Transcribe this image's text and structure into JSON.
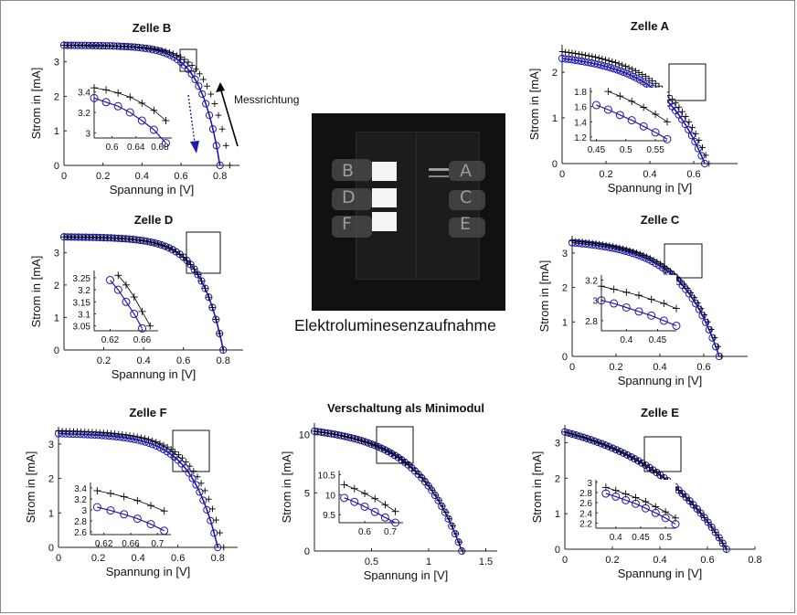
{
  "caption": "Elektroluminesenzaufnahme",
  "photo": {
    "cells_left": [
      "B",
      "D",
      "F"
    ],
    "cells_right": [
      "A",
      "C",
      "E"
    ]
  },
  "colors": {
    "measured": "#000000",
    "simulated": "#1f1aa8",
    "arrow_measure": "#000000",
    "arrow_sim": "#1f1aa8"
  },
  "chart_data": [
    {
      "id": "B",
      "type": "line",
      "title": "Zelle B",
      "xlabel": "Spannung in [V]",
      "ylabel": "Strom in [mA]",
      "xlim": [
        0,
        0.9
      ],
      "ylim": [
        0,
        3.6
      ],
      "xticks": [
        "0",
        "0.2",
        "0.4",
        "0.6",
        "0.8"
      ],
      "xtickvals": [
        0,
        0.2,
        0.4,
        0.6,
        0.8
      ],
      "yticks": [
        "0",
        "1",
        "2",
        "3"
      ],
      "ytickvals": [
        0,
        1,
        2,
        3
      ],
      "isc": 3.48,
      "voc_meas": 0.85,
      "voc_sim": 0.8,
      "shape": 8,
      "slope": 0.08,
      "annotation": "Messrichtung",
      "inset": {
        "xlim": [
          0.57,
          0.7
        ],
        "ylim": [
          2.95,
          3.45
        ],
        "xticks": [
          "0.6",
          "0.64",
          "0.68"
        ],
        "xtickvals": [
          0.6,
          0.64,
          0.68
        ],
        "yticks": [
          "3",
          "3.2",
          "3.4"
        ],
        "ytickvals": [
          3.0,
          3.2,
          3.4
        ],
        "series": [
          {
            "name": "measured",
            "x": [
              0.57,
              0.59,
              0.61,
              0.63,
              0.65,
              0.67,
              0.69
            ],
            "y": [
              3.44,
              3.42,
              3.39,
              3.35,
              3.29,
              3.22,
              3.12
            ]
          },
          {
            "name": "simulated",
            "x": [
              0.57,
              0.59,
              0.61,
              0.63,
              0.65,
              0.67,
              0.69
            ],
            "y": [
              3.34,
              3.3,
              3.26,
              3.2,
              3.12,
              3.03,
              2.9
            ]
          }
        ]
      }
    },
    {
      "id": "A",
      "type": "line",
      "title": "Zelle A",
      "xlabel": "Spannung in [V]",
      "ylabel": "Strom in [mA]",
      "xlim": [
        0,
        0.8
      ],
      "ylim": [
        0,
        2.6
      ],
      "xticks": [
        "0",
        "0.2",
        "0.4",
        "0.6"
      ],
      "xtickvals": [
        0,
        0.2,
        0.4,
        0.6
      ],
      "yticks": [
        "0",
        "1",
        "2"
      ],
      "ytickvals": [
        0,
        1,
        2
      ],
      "isc": 2.45,
      "isc_sim": 2.3,
      "voc_meas": 0.67,
      "voc_sim": 0.65,
      "shape": 3.5,
      "slope": 0.55,
      "inset": {
        "xlim": [
          0.44,
          0.57
        ],
        "ylim": [
          1.15,
          1.85
        ],
        "xticks": [
          "0.45",
          "0.5",
          "0.55"
        ],
        "xtickvals": [
          0.45,
          0.5,
          0.55
        ],
        "yticks": [
          "1.2",
          "1.4",
          "1.6",
          "1.8"
        ],
        "ytickvals": [
          1.2,
          1.4,
          1.6,
          1.8
        ],
        "series": [
          {
            "name": "measured",
            "x": [
              0.47,
              0.49,
              0.51,
              0.53,
              0.55,
              0.57
            ],
            "y": [
              1.8,
              1.74,
              1.67,
              1.59,
              1.5,
              1.4
            ]
          },
          {
            "name": "simulated",
            "x": [
              0.45,
              0.47,
              0.49,
              0.51,
              0.53,
              0.55,
              0.57
            ],
            "y": [
              1.62,
              1.56,
              1.49,
              1.42,
              1.34,
              1.26,
              1.17
            ]
          }
        ]
      }
    },
    {
      "id": "D",
      "type": "line",
      "title": "Zelle D",
      "xlabel": "Spannung in [V]",
      "ylabel": "Strom in [mA]",
      "xlim": [
        0,
        0.9
      ],
      "ylim": [
        0,
        3.6
      ],
      "xticks": [
        "0.2",
        "0.4",
        "0.6",
        "0.8"
      ],
      "xtickvals": [
        0.2,
        0.4,
        0.6,
        0.8
      ],
      "yticks": [
        "0",
        "1",
        "2",
        "3"
      ],
      "ytickvals": [
        0,
        1,
        2,
        3
      ],
      "isc": 3.48,
      "voc_meas": 0.8,
      "voc_sim": 0.8,
      "shape": 7,
      "slope": 0.1,
      "inset": {
        "xlim": [
          0.6,
          0.68
        ],
        "ylim": [
          3.03,
          3.28
        ],
        "xticks": [
          "0.62",
          "0.66"
        ],
        "xtickvals": [
          0.62,
          0.66
        ],
        "yticks": [
          "3.05",
          "3.1",
          "3.15",
          "3.2",
          "3.25"
        ],
        "ytickvals": [
          3.05,
          3.1,
          3.15,
          3.2,
          3.25
        ],
        "series": [
          {
            "name": "measured",
            "x": [
              0.63,
              0.64,
              0.65,
              0.66,
              0.67
            ],
            "y": [
              3.26,
              3.22,
              3.17,
              3.11,
              3.05
            ]
          },
          {
            "name": "simulated",
            "x": [
              0.62,
              0.63,
              0.64,
              0.65,
              0.66
            ],
            "y": [
              3.24,
              3.2,
              3.15,
              3.1,
              3.04
            ]
          }
        ]
      }
    },
    {
      "id": "C",
      "type": "line",
      "title": "Zelle C",
      "xlabel": "Spannung in [V]",
      "ylabel": "Strom in [mA]",
      "xlim": [
        0,
        0.8
      ],
      "ylim": [
        0,
        3.5
      ],
      "xticks": [
        "0",
        "0.2",
        "0.4",
        "0.6"
      ],
      "xtickvals": [
        0,
        0.2,
        0.4,
        0.6
      ],
      "yticks": [
        "0",
        "1",
        "2",
        "3"
      ],
      "ytickvals": [
        0,
        1,
        2,
        3
      ],
      "isc": 3.35,
      "isc_sim": 3.3,
      "voc_meas": 0.68,
      "voc_sim": 0.67,
      "shape": 4,
      "slope": 0.4,
      "inset": {
        "xlim": [
          0.36,
          0.48
        ],
        "ylim": [
          2.7,
          3.25
        ],
        "xticks": [
          "0.4",
          "0.45"
        ],
        "xtickvals": [
          0.4,
          0.45
        ],
        "yticks": [
          "2.8",
          "3",
          "3.2"
        ],
        "ytickvals": [
          2.8,
          3.0,
          3.2
        ],
        "series": [
          {
            "name": "measured",
            "x": [
              0.36,
              0.38,
              0.4,
              0.42,
              0.44,
              0.46,
              0.48
            ],
            "y": [
              3.14,
              3.11,
              3.08,
              3.05,
              3.01,
              2.97,
              2.92
            ]
          },
          {
            "name": "simulated",
            "x": [
              0.36,
              0.38,
              0.4,
              0.42,
              0.44,
              0.46,
              0.48
            ],
            "y": [
              3.0,
              2.97,
              2.93,
              2.89,
              2.85,
              2.8,
              2.75
            ]
          }
        ]
      }
    },
    {
      "id": "F",
      "type": "line",
      "title": "Zelle F",
      "xlabel": "Spannung in [V]",
      "ylabel": "Strom in [mA]",
      "xlim": [
        0,
        0.9
      ],
      "ylim": [
        0,
        3.5
      ],
      "xticks": [
        "0",
        "0.2",
        "0.4",
        "0.6",
        "0.8"
      ],
      "xtickvals": [
        0,
        0.2,
        0.4,
        0.6,
        0.8
      ],
      "yticks": [
        "0",
        "1",
        "2",
        "3"
      ],
      "ytickvals": [
        0,
        1,
        2,
        3
      ],
      "isc": 3.38,
      "isc_sim": 3.3,
      "voc_meas": 0.83,
      "voc_sim": 0.8,
      "shape": 6,
      "slope": 0.2,
      "inset": {
        "xlim": [
          0.6,
          0.72
        ],
        "ylim": [
          2.55,
          3.5
        ],
        "xticks": [
          "0.62",
          "0.66",
          "0.7"
        ],
        "xtickvals": [
          0.62,
          0.66,
          0.7
        ],
        "yticks": [
          "2.6",
          "2.8",
          "3",
          "3.2",
          "3.4"
        ],
        "ytickvals": [
          2.6,
          2.8,
          3.0,
          3.2,
          3.4
        ],
        "series": [
          {
            "name": "measured",
            "x": [
              0.61,
              0.63,
              0.65,
              0.67,
              0.69,
              0.71
            ],
            "y": [
              3.35,
              3.3,
              3.24,
              3.17,
              3.08,
              2.98
            ]
          },
          {
            "name": "simulated",
            "x": [
              0.61,
              0.63,
              0.65,
              0.67,
              0.69,
              0.71
            ],
            "y": [
              3.05,
              2.99,
              2.92,
              2.84,
              2.74,
              2.62
            ]
          }
        ]
      }
    },
    {
      "id": "M",
      "type": "line",
      "title": "Verschaltung als Minimodul",
      "xlabel": "Spannung in [V]",
      "ylabel": "Strom in [mA]",
      "xlim": [
        0,
        1.6
      ],
      "ylim": [
        0,
        11
      ],
      "xticks": [
        "0.5",
        "1",
        "1.5"
      ],
      "xtickvals": [
        0.5,
        1,
        1.5
      ],
      "yticks": [
        "0",
        "5",
        "10"
      ],
      "ytickvals": [
        0,
        5,
        10
      ],
      "isc": 10.3,
      "voc_meas": 1.3,
      "voc_sim": 1.29,
      "shape": 3.5,
      "slope": 0.5,
      "inset": {
        "xlim": [
          0.5,
          0.75
        ],
        "ylim": [
          9.3,
          10.6
        ],
        "xticks": [
          "0.6",
          "0.7"
        ],
        "xtickvals": [
          0.6,
          0.7
        ],
        "yticks": [
          "9.5",
          "10",
          "10.5"
        ],
        "ytickvals": [
          9.5,
          10,
          10.5
        ],
        "series": [
          {
            "name": "measured",
            "x": [
              0.52,
              0.56,
              0.6,
              0.64,
              0.68,
              0.72
            ],
            "y": [
              10.25,
              10.15,
              10.03,
              9.9,
              9.75,
              9.58
            ]
          },
          {
            "name": "simulated",
            "x": [
              0.52,
              0.56,
              0.6,
              0.64,
              0.68,
              0.72
            ],
            "y": [
              9.92,
              9.82,
              9.7,
              9.57,
              9.43,
              9.3
            ]
          }
        ]
      }
    },
    {
      "id": "E",
      "type": "line",
      "title": "Zelle E",
      "xlabel": "Spannung in [V]",
      "ylabel": "Strom in [mA]",
      "xlim": [
        0,
        0.8
      ],
      "ylim": [
        0,
        3.5
      ],
      "xticks": [
        "0",
        "0.2",
        "0.4",
        "0.6",
        "0.8"
      ],
      "xtickvals": [
        0,
        0.2,
        0.4,
        0.6,
        0.8
      ],
      "yticks": [
        "0",
        "1",
        "2",
        "3"
      ],
      "ytickvals": [
        0,
        1,
        2,
        3
      ],
      "isc": 3.3,
      "voc_meas": 0.68,
      "voc_sim": 0.68,
      "shape": 2.2,
      "slope": 0.9,
      "inset": {
        "xlim": [
          0.36,
          0.52
        ],
        "ylim": [
          2.1,
          3.05
        ],
        "xticks": [
          "0.4",
          "0.45",
          "0.5"
        ],
        "xtickvals": [
          0.4,
          0.45,
          0.5
        ],
        "yticks": [
          "2.2",
          "2.4",
          "2.6",
          "2.8",
          "3"
        ],
        "ytickvals": [
          2.2,
          2.4,
          2.6,
          2.8,
          3.0
        ],
        "series": [
          {
            "name": "measured",
            "x": [
              0.38,
              0.4,
              0.42,
              0.44,
              0.46,
              0.48,
              0.5,
              0.52
            ],
            "y": [
              2.9,
              2.84,
              2.77,
              2.7,
              2.62,
              2.52,
              2.42,
              2.3
            ]
          },
          {
            "name": "simulated",
            "x": [
              0.38,
              0.4,
              0.42,
              0.44,
              0.46,
              0.48,
              0.5,
              0.52
            ],
            "y": [
              2.78,
              2.72,
              2.65,
              2.58,
              2.49,
              2.4,
              2.3,
              2.18
            ]
          }
        ]
      }
    }
  ]
}
